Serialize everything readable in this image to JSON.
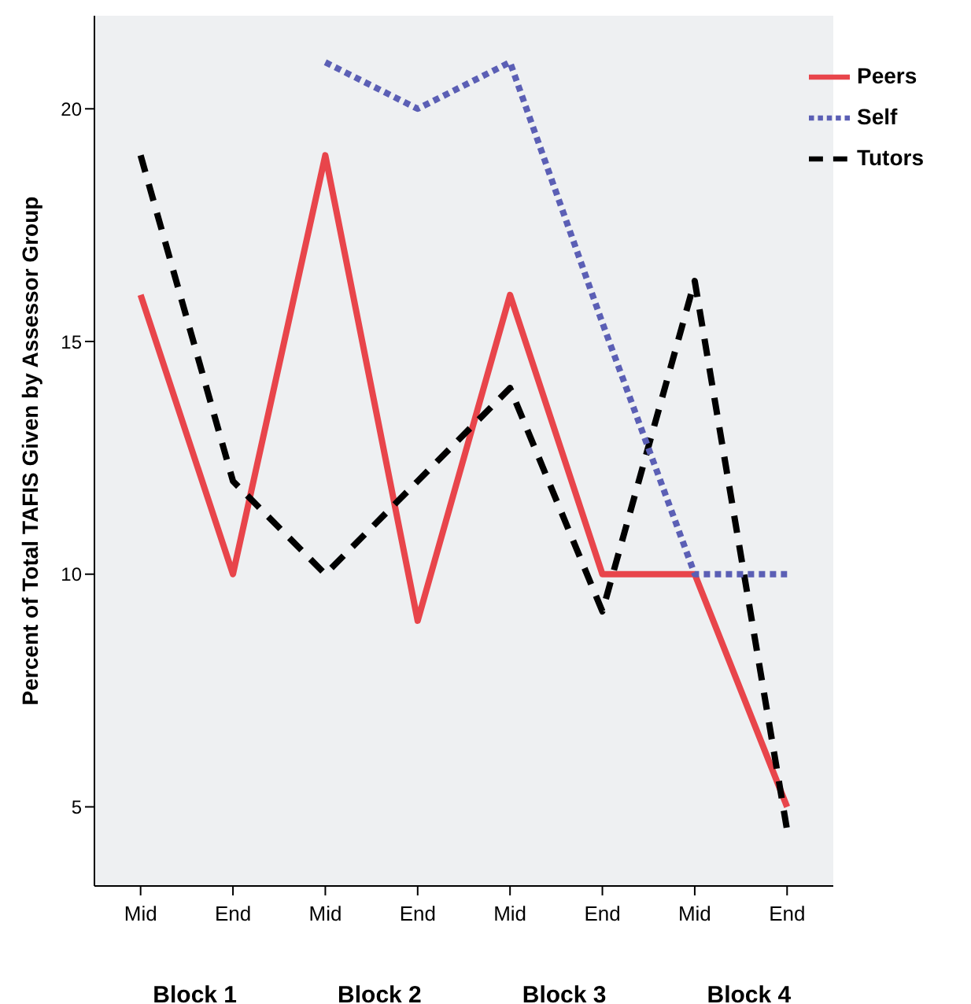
{
  "chart_data": {
    "type": "line",
    "ylabel": "Percent of Total TAFIS Given by Assessor Group",
    "categories": [
      "Mid",
      "End",
      "Mid",
      "End",
      "Mid",
      "End",
      "Mid",
      "End"
    ],
    "annotations": [
      "Block 1",
      "Block 2",
      "Block 3",
      "Block 4"
    ],
    "series": [
      {
        "name": "Peers",
        "color": "#e8454b",
        "line_style": "solid",
        "values": [
          16,
          10,
          19,
          9,
          16,
          10,
          10,
          5
        ]
      },
      {
        "name": "Tutors",
        "color": "#000000",
        "line_style": "dashed",
        "values": [
          19,
          12,
          10,
          12,
          14,
          9.2,
          16.3,
          4.5
        ]
      },
      {
        "name": "Self",
        "color": "#5b5fb5",
        "line_style": "dotted",
        "values": [
          null,
          null,
          21,
          20,
          21,
          15.4,
          10,
          10
        ]
      }
    ],
    "ylim": [
      3.3,
      22
    ],
    "yticks": [
      5,
      10,
      15,
      20
    ],
    "grid": false,
    "legend": "top right",
    "marker": "none"
  }
}
